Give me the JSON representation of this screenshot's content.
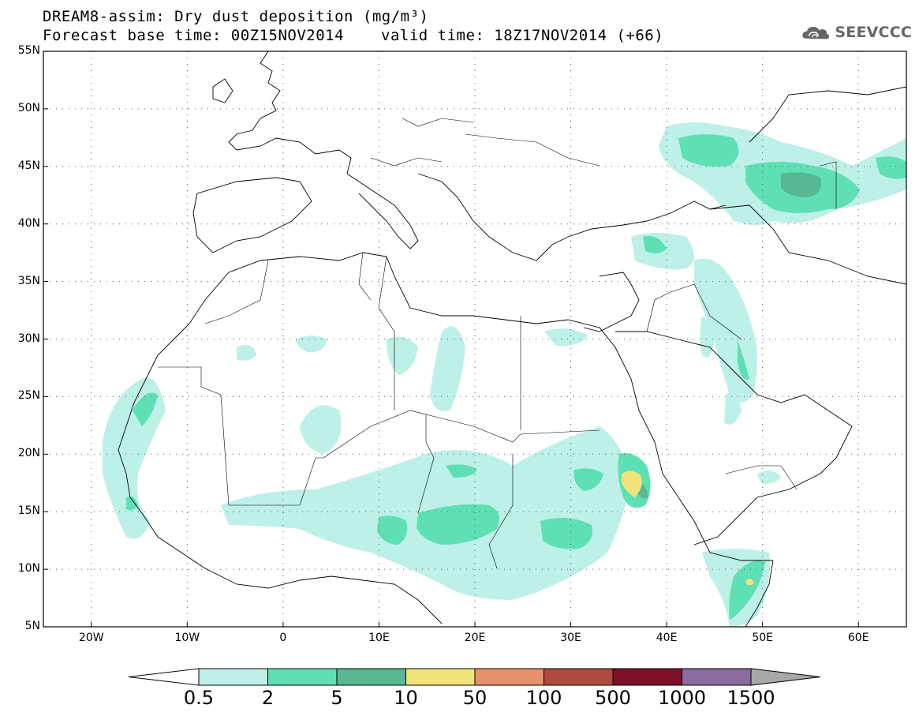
{
  "header": {
    "title": "DREAM8-assim: Dry dust deposition (mg/m³)",
    "base_time": "Forecast base time: 00Z15NOV2014",
    "valid_time": "valid time: 18Z17NOV2014 (+66)",
    "logo_text": "SEEVCCC"
  },
  "map": {
    "lat_labels": [
      "55N",
      "50N",
      "45N",
      "40N",
      "35N",
      "30N",
      "25N",
      "20N",
      "15N",
      "10N",
      "5N"
    ],
    "lon_labels": [
      "20W",
      "10W",
      "0",
      "10E",
      "20E",
      "30E",
      "40E",
      "50E",
      "60E"
    ],
    "extent": {
      "lon": [
        -25,
        65
      ],
      "lat": [
        5,
        55
      ]
    },
    "grid": "dotted"
  },
  "colorbar": {
    "labels": [
      "0.5",
      "2",
      "5",
      "10",
      "50",
      "100",
      "500",
      "1000",
      "1500"
    ],
    "colors": [
      "#bdf0e6",
      "#5ee0b4",
      "#57b891",
      "#f0e478",
      "#e8906a",
      "#b04a40",
      "#80102a",
      "#8c6ca0"
    ],
    "under_color": "#ffffff",
    "over_color": "#a8a8a8"
  }
}
